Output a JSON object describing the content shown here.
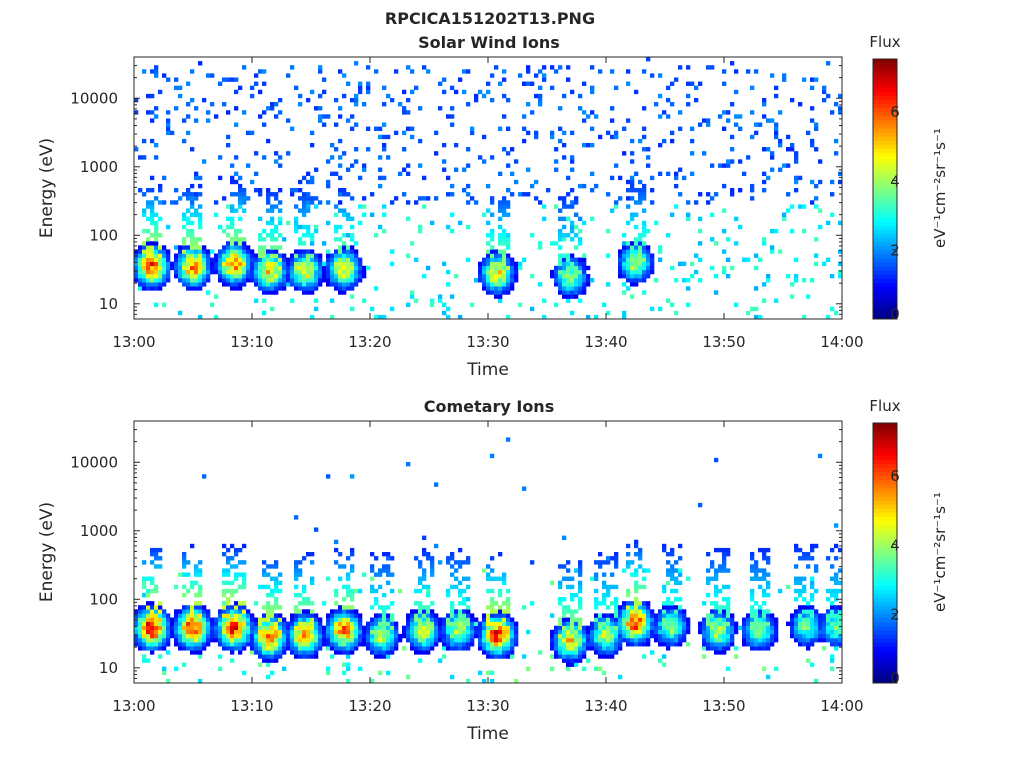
{
  "figure_title": "RPCICA151202T13.PNG",
  "colors": {
    "colormap": "jet",
    "axis": "#262626",
    "background": "#ffffff"
  },
  "chart_data": [
    {
      "type": "heatmap",
      "title": "Solar Wind Ions",
      "xlabel": "Time",
      "ylabel": "Energy (eV)",
      "x_ticks": [
        "13:00",
        "13:10",
        "13:20",
        "13:30",
        "13:40",
        "13:50",
        "14:00"
      ],
      "x_range": [
        "13:00",
        "14:00"
      ],
      "y_scale": "log",
      "y_ticks": [
        "10",
        "100",
        "1000",
        "10000"
      ],
      "y_range": [
        6,
        40000
      ],
      "colorbar": {
        "title": "Flux",
        "label": "eV⁻¹cm⁻²sr⁻¹s⁻¹",
        "ticks": [
          "0",
          "2",
          "4",
          "6"
        ],
        "range": [
          0,
          7.5
        ]
      },
      "bursts": [
        {
          "time_min": 1.5,
          "energy_eV": 35,
          "flux": 6.5
        },
        {
          "time_min": 5.0,
          "energy_eV": 35,
          "flux": 6.0
        },
        {
          "time_min": 8.5,
          "energy_eV": 38,
          "flux": 6.0
        },
        {
          "time_min": 11.5,
          "energy_eV": 30,
          "flux": 5.5
        },
        {
          "time_min": 14.5,
          "energy_eV": 30,
          "flux": 5.0
        },
        {
          "time_min": 17.8,
          "energy_eV": 32,
          "flux": 5.2
        },
        {
          "time_min": 30.8,
          "energy_eV": 28,
          "flux": 5.2
        },
        {
          "time_min": 37.0,
          "energy_eV": 25,
          "flux": 4.2
        },
        {
          "time_min": 42.5,
          "energy_eV": 40,
          "flux": 4.5
        }
      ],
      "background_flux": {
        "low_energy_eV": [
          6,
          300
        ],
        "high_energy_eV": [
          300,
          30000
        ],
        "typical_flux_high": 1.5,
        "typical_flux_low": 3.0
      }
    },
    {
      "type": "heatmap",
      "title": "Cometary Ions",
      "xlabel": "Time",
      "ylabel": "Energy (eV)",
      "x_ticks": [
        "13:00",
        "13:10",
        "13:20",
        "13:30",
        "13:40",
        "13:50",
        "14:00"
      ],
      "x_range": [
        "13:00",
        "14:00"
      ],
      "y_scale": "log",
      "y_ticks": [
        "10",
        "100",
        "1000",
        "10000"
      ],
      "y_range": [
        6,
        40000
      ],
      "colorbar": {
        "title": "Flux",
        "label": "eV⁻¹cm⁻²sr⁻¹s⁻¹",
        "ticks": [
          "0",
          "2",
          "4",
          "6"
        ],
        "range": [
          0,
          7.5
        ]
      },
      "bursts": [
        {
          "time_min": 1.5,
          "energy_eV": 38,
          "flux": 7.2
        },
        {
          "time_min": 5.0,
          "energy_eV": 38,
          "flux": 7.0
        },
        {
          "time_min": 8.5,
          "energy_eV": 38,
          "flux": 7.2
        },
        {
          "time_min": 11.5,
          "energy_eV": 28,
          "flux": 6.5
        },
        {
          "time_min": 14.5,
          "energy_eV": 30,
          "flux": 6.0
        },
        {
          "time_min": 17.8,
          "energy_eV": 35,
          "flux": 6.2
        },
        {
          "time_min": 21.0,
          "energy_eV": 30,
          "flux": 4.5
        },
        {
          "time_min": 24.5,
          "energy_eV": 35,
          "flux": 4.8
        },
        {
          "time_min": 27.5,
          "energy_eV": 35,
          "flux": 4.5
        },
        {
          "time_min": 30.8,
          "energy_eV": 30,
          "flux": 6.8
        },
        {
          "time_min": 37.0,
          "energy_eV": 25,
          "flux": 5.5
        },
        {
          "time_min": 40.0,
          "energy_eV": 30,
          "flux": 4.5
        },
        {
          "time_min": 42.5,
          "energy_eV": 45,
          "flux": 6.5
        },
        {
          "time_min": 45.5,
          "energy_eV": 40,
          "flux": 4.2
        },
        {
          "time_min": 49.5,
          "energy_eV": 35,
          "flux": 4.5
        },
        {
          "time_min": 53.0,
          "energy_eV": 35,
          "flux": 4.2
        },
        {
          "time_min": 57.0,
          "energy_eV": 40,
          "flux": 3.8
        },
        {
          "time_min": 59.5,
          "energy_eV": 40,
          "flux": 3.8
        }
      ]
    }
  ]
}
